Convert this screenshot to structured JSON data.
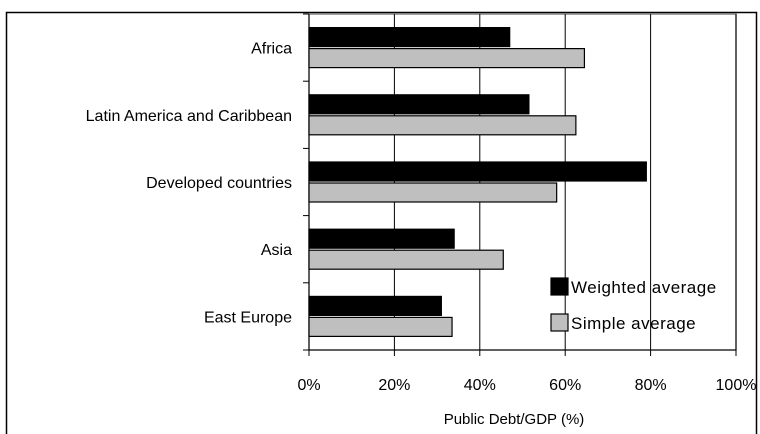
{
  "chart_data": {
    "type": "bar",
    "orientation": "horizontal",
    "title": "",
    "xlabel": "Public Debt/GDP (%)",
    "ylabel": "",
    "categories": [
      "Africa",
      "Latin America and Caribbean",
      "Developed countries",
      "Asia",
      "East Europe"
    ],
    "series": [
      {
        "name": "Weighted average",
        "values": [
          47,
          51.5,
          79,
          34,
          31
        ],
        "color": "#000000"
      },
      {
        "name": "Simple average",
        "values": [
          64.5,
          62.5,
          58,
          45.5,
          33.5
        ],
        "color": "#bfbfbf"
      }
    ],
    "xlim": [
      0,
      100
    ],
    "xticks": [
      0,
      20,
      40,
      60,
      80,
      100
    ],
    "xtick_labels": [
      "0%",
      "20%",
      "40%",
      "60%",
      "80%",
      "100%"
    ],
    "grid": "vertical",
    "legend_position": "bottom-right"
  }
}
